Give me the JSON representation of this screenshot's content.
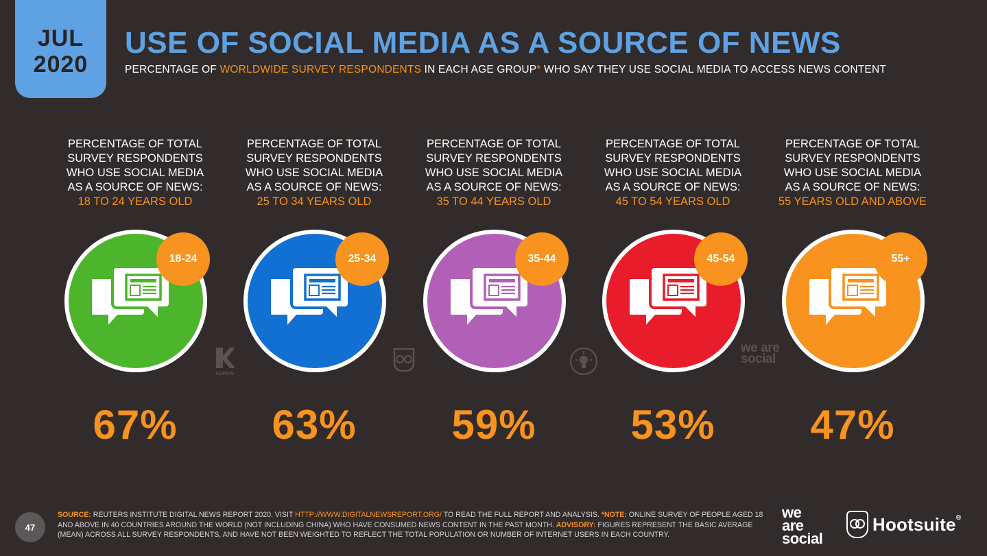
{
  "date_tab": {
    "month": "JUL",
    "year": "2020"
  },
  "header": {
    "title": "USE OF SOCIAL MEDIA AS A SOURCE OF NEWS",
    "subtitle_pre": "PERCENTAGE OF ",
    "subtitle_highlight": "WORLDWIDE SURVEY RESPONDENTS",
    "subtitle_mid": " IN EACH AGE GROUP",
    "subtitle_star": "*",
    "subtitle_post": " WHO SAY THEY USE SOCIAL MEDIA TO ACCESS NEWS CONTENT"
  },
  "colors": {
    "accent": "#f7931e",
    "title_blue": "#5ea2e4",
    "background": "#322b2b"
  },
  "chart_data": {
    "type": "table",
    "title": "USE OF SOCIAL MEDIA AS A SOURCE OF NEWS",
    "description_line": "PERCENTAGE OF TOTAL SURVEY RESPONDENTS WHO USE SOCIAL MEDIA AS A SOURCE OF NEWS:",
    "groups": [
      {
        "age_label": "18 TO 24 YEARS OLD",
        "badge": "18-24",
        "value_text": "67%",
        "value": 67,
        "color": "#4cb52c",
        "icon": "news-chat-icon"
      },
      {
        "age_label": "25 TO 34 YEARS OLD",
        "badge": "25-34",
        "value_text": "63%",
        "value": 63,
        "color": "#1170d1",
        "icon": "news-chat-icon"
      },
      {
        "age_label": "35 TO 44 YEARS OLD",
        "badge": "35-44",
        "value_text": "59%",
        "value": 59,
        "color": "#b25fb8",
        "icon": "news-chat-icon"
      },
      {
        "age_label": "45 TO 54 YEARS OLD",
        "badge": "45-54",
        "value_text": "53%",
        "value": 53,
        "color": "#e81c2a",
        "icon": "news-chat-icon"
      },
      {
        "age_label": "55 YEARS OLD AND ABOVE",
        "badge": "55+",
        "value_text": "47%",
        "value": 47,
        "color": "#f7931e",
        "icon": "news-chat-icon"
      }
    ]
  },
  "mini_logos": {
    "kepios": "KEPIOS",
    "we_are_social_small": "we are social"
  },
  "footer": {
    "page_number": "47",
    "source_label": "SOURCE:",
    "source_text": " REUTERS INSTITUTE DIGITAL NEWS REPORT 2020. VISIT ",
    "source_link": "HTTP://WWW.DIGITALNEWSREPORT.ORG/",
    "source_text2": " TO READ THE FULL REPORT AND ANALYSIS. ",
    "note_label": "*NOTE:",
    "note_text": " ONLINE SURVEY OF PEOPLE AGED 18 AND ABOVE IN 40 COUNTRIES AROUND THE WORLD (NOT INCLUDING CHINA) WHO HAVE CONSUMED NEWS CONTENT IN THE PAST MONTH. ",
    "advisory_label": "ADVISORY:",
    "advisory_text": " FIGURES REPRESENT THE BASIC AVERAGE (MEAN) ACROSS ALL SURVEY RESPONDENTS, AND HAVE NOT BEEN WEIGHTED TO REFLECT THE TOTAL POPULATION OR NUMBER OF INTERNET USERS IN EACH COUNTRY.",
    "logo_was_1": "we",
    "logo_was_2": "are",
    "logo_was_3": "social",
    "logo_hootsuite": "Hootsuite",
    "logo_hootsuite_reg": "®"
  }
}
